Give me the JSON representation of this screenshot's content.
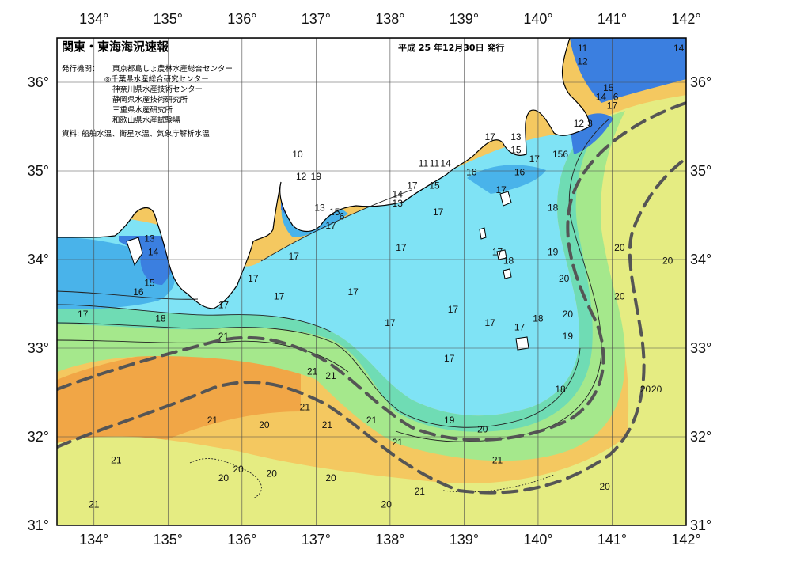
{
  "header": {
    "title": "関東・東海海況速報",
    "date_label": "平成 25 年12月30日 発行",
    "issuer_label": "発行機関：",
    "issuers": [
      "東京都島しょ農林水産総合センター",
      "◎千葉県水産総合研究センター",
      "神奈川県水産技術センター",
      "静岡県水産技術研究所",
      "三重県水産研究所",
      "和歌山県水産試験場"
    ],
    "source_label": "資料: 船舶水温、衛星水温、気象庁解析水温"
  },
  "axes": {
    "lon_ticks": [
      "134°",
      "135°",
      "136°",
      "137°",
      "138°",
      "139°",
      "140°",
      "141°",
      "142°"
    ],
    "lat_ticks": [
      "36°",
      "35°",
      "34°",
      "33°",
      "32°",
      "31°"
    ]
  },
  "colors": {
    "land": "#ffffff",
    "coast": "#000000",
    "grid": "#4a4a4a",
    "kuroshio_axis": "#555555",
    "sst_13": "#3b7fe0",
    "sst_15": "#49b3ea",
    "sst_17": "#7fe3f5",
    "sst_18": "#6fdcb4",
    "sst_19": "#a5e88c",
    "sst_20": "#e5ec82",
    "sst_21": "#f4c860",
    "sst_22": "#f1a646"
  },
  "contour_labels": [
    {
      "text": "13",
      "lon": 134.75,
      "lat": 34.2
    },
    {
      "text": "14",
      "lon": 134.8,
      "lat": 34.05
    },
    {
      "text": "15",
      "lon": 134.75,
      "lat": 33.7
    },
    {
      "text": "16",
      "lon": 134.6,
      "lat": 33.6
    },
    {
      "text": "17",
      "lon": 133.85,
      "lat": 33.35
    },
    {
      "text": "18",
      "lon": 134.9,
      "lat": 33.3
    },
    {
      "text": "17",
      "lon": 135.75,
      "lat": 33.45
    },
    {
      "text": "21",
      "lon": 135.75,
      "lat": 33.1
    },
    {
      "text": "10",
      "lon": 136.75,
      "lat": 35.15
    },
    {
      "text": "12",
      "lon": 136.8,
      "lat": 34.9
    },
    {
      "text": "19",
      "lon": 137.0,
      "lat": 34.9
    },
    {
      "text": "13",
      "lon": 137.05,
      "lat": 34.55
    },
    {
      "text": "15",
      "lon": 137.25,
      "lat": 34.5
    },
    {
      "text": "6",
      "lon": 137.35,
      "lat": 34.45
    },
    {
      "text": "17",
      "lon": 137.2,
      "lat": 34.35
    },
    {
      "text": "17",
      "lon": 136.7,
      "lat": 34.0
    },
    {
      "text": "17",
      "lon": 136.15,
      "lat": 33.75
    },
    {
      "text": "17",
      "lon": 136.5,
      "lat": 33.55
    },
    {
      "text": "17",
      "lon": 137.5,
      "lat": 33.6
    },
    {
      "text": "14",
      "lon": 138.1,
      "lat": 34.7
    },
    {
      "text": "13",
      "lon": 138.1,
      "lat": 34.6
    },
    {
      "text": "17",
      "lon": 138.3,
      "lat": 34.8
    },
    {
      "text": "15",
      "lon": 138.6,
      "lat": 34.8
    },
    {
      "text": "17",
      "lon": 138.65,
      "lat": 34.5
    },
    {
      "text": "17",
      "lon": 138.15,
      "lat": 34.1
    },
    {
      "text": "11",
      "lon": 138.45,
      "lat": 35.05
    },
    {
      "text": "11",
      "lon": 138.6,
      "lat": 35.05
    },
    {
      "text": "14",
      "lon": 138.75,
      "lat": 35.05
    },
    {
      "text": "16",
      "lon": 139.1,
      "lat": 34.95
    },
    {
      "text": "17",
      "lon": 139.35,
      "lat": 35.35
    },
    {
      "text": "13",
      "lon": 139.7,
      "lat": 35.35
    },
    {
      "text": "15",
      "lon": 139.7,
      "lat": 35.2
    },
    {
      "text": "16",
      "lon": 139.75,
      "lat": 34.95
    },
    {
      "text": "17",
      "lon": 139.95,
      "lat": 35.1
    },
    {
      "text": "156",
      "lon": 140.3,
      "lat": 35.15
    },
    {
      "text": "17",
      "lon": 139.5,
      "lat": 34.75
    },
    {
      "text": "18",
      "lon": 140.2,
      "lat": 34.55
    },
    {
      "text": "17",
      "lon": 139.45,
      "lat": 34.05
    },
    {
      "text": "18",
      "lon": 139.6,
      "lat": 33.95
    },
    {
      "text": "19",
      "lon": 140.2,
      "lat": 34.05
    },
    {
      "text": "20",
      "lon": 140.35,
      "lat": 33.75
    },
    {
      "text": "17",
      "lon": 138.0,
      "lat": 33.25
    },
    {
      "text": "17",
      "lon": 138.85,
      "lat": 33.4
    },
    {
      "text": "17",
      "lon": 139.35,
      "lat": 33.25
    },
    {
      "text": "17",
      "lon": 139.75,
      "lat": 33.2
    },
    {
      "text": "18",
      "lon": 140.0,
      "lat": 33.3
    },
    {
      "text": "20",
      "lon": 140.4,
      "lat": 33.35
    },
    {
      "text": "19",
      "lon": 140.4,
      "lat": 33.1
    },
    {
      "text": "17",
      "lon": 138.8,
      "lat": 32.85
    },
    {
      "text": "18",
      "lon": 140.3,
      "lat": 32.5
    },
    {
      "text": "19",
      "lon": 138.8,
      "lat": 32.15
    },
    {
      "text": "20",
      "lon": 139.25,
      "lat": 32.05
    },
    {
      "text": "21",
      "lon": 136.95,
      "lat": 32.7
    },
    {
      "text": "21",
      "lon": 137.2,
      "lat": 32.65
    },
    {
      "text": "21",
      "lon": 136.85,
      "lat": 32.3
    },
    {
      "text": "21",
      "lon": 135.6,
      "lat": 32.15
    },
    {
      "text": "20",
      "lon": 136.3,
      "lat": 32.1
    },
    {
      "text": "21",
      "lon": 137.15,
      "lat": 32.1
    },
    {
      "text": "21",
      "lon": 137.75,
      "lat": 32.15
    },
    {
      "text": "21",
      "lon": 138.1,
      "lat": 31.9
    },
    {
      "text": "21",
      "lon": 134.3,
      "lat": 31.7
    },
    {
      "text": "20",
      "lon": 135.75,
      "lat": 31.5
    },
    {
      "text": "20",
      "lon": 135.95,
      "lat": 31.6
    },
    {
      "text": "20",
      "lon": 136.4,
      "lat": 31.55
    },
    {
      "text": "20",
      "lon": 137.2,
      "lat": 31.5
    },
    {
      "text": "21",
      "lon": 138.4,
      "lat": 31.35
    },
    {
      "text": "21",
      "lon": 139.45,
      "lat": 31.7
    },
    {
      "text": "20",
      "lon": 137.95,
      "lat": 31.2
    },
    {
      "text": "21",
      "lon": 134.0,
      "lat": 31.2
    },
    {
      "text": "20",
      "lon": 140.9,
      "lat": 31.4
    },
    {
      "text": "20",
      "lon": 141.45,
      "lat": 32.5
    },
    {
      "text": "20",
      "lon": 141.6,
      "lat": 32.5
    },
    {
      "text": "20",
      "lon": 141.1,
      "lat": 34.1
    },
    {
      "text": "20",
      "lon": 141.75,
      "lat": 33.95
    },
    {
      "text": "20",
      "lon": 141.1,
      "lat": 33.55
    },
    {
      "text": "11",
      "lon": 140.6,
      "lat": 36.35
    },
    {
      "text": "12",
      "lon": 140.6,
      "lat": 36.2
    },
    {
      "text": "14",
      "lon": 141.9,
      "lat": 36.35
    },
    {
      "text": "15",
      "lon": 140.95,
      "lat": 35.9
    },
    {
      "text": "14",
      "lon": 140.85,
      "lat": 35.8
    },
    {
      "text": "6",
      "lon": 141.05,
      "lat": 35.8
    },
    {
      "text": "17",
      "lon": 141.0,
      "lat": 35.7
    },
    {
      "text": "12",
      "lon": 140.55,
      "lat": 35.5
    },
    {
      "text": "3",
      "lon": 140.7,
      "lat": 35.5
    }
  ]
}
